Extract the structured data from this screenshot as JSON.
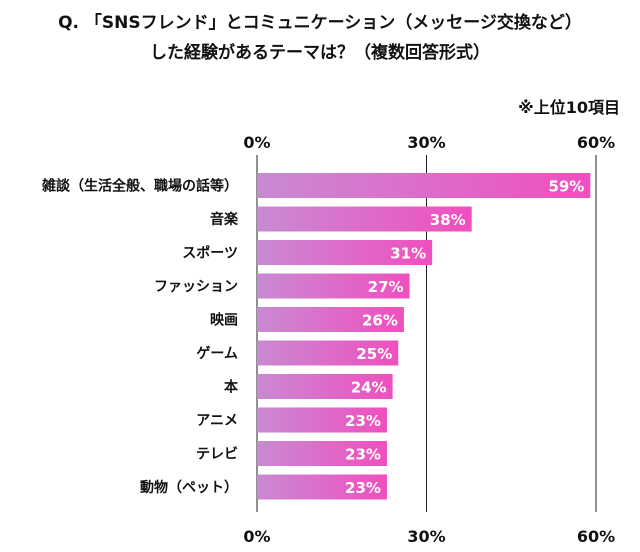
{
  "title_line1": "Q. 「SNSフレンド」とコミュニケーション（メッセージ交換など）",
  "title_line2": "した経験があるテーマは？（複数回答形式）",
  "note": "※上位10項目",
  "colors": {
    "bar_left": "#c98ad3",
    "bar_right": "#f04fbe",
    "grid": "#222222"
  },
  "chart_data": {
    "type": "bar",
    "orientation": "horizontal",
    "categories": [
      "雑談（生活全般、職場の話等）",
      "音楽",
      "スポーツ",
      "ファッション",
      "映画",
      "ゲーム",
      "本",
      "アニメ",
      "テレビ",
      "動物（ペット）"
    ],
    "values": [
      59,
      38,
      31,
      27,
      26,
      25,
      24,
      23,
      23,
      23
    ],
    "value_labels": [
      "59%",
      "38%",
      "31%",
      "27%",
      "26%",
      "25%",
      "24%",
      "23%",
      "23%",
      "23%"
    ],
    "xlim": [
      0,
      60
    ],
    "ticks": [
      0,
      30,
      60
    ],
    "tick_labels": [
      "0%",
      "30%",
      "60%"
    ],
    "grid": true
  }
}
